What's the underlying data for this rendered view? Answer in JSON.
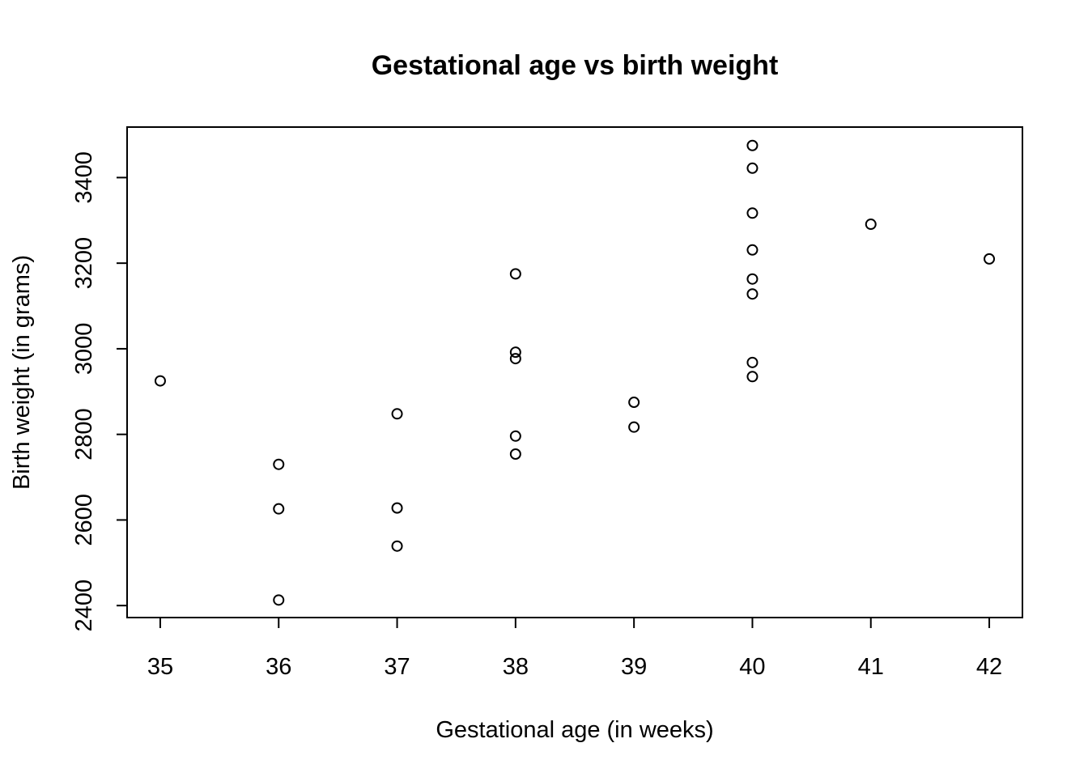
{
  "chart_data": {
    "type": "scatter",
    "title": "Gestational age vs birth weight",
    "xlabel": "Gestational age (in weeks)",
    "ylabel": "Birth weight (in grams)",
    "xlim": [
      34.72,
      42.28
    ],
    "ylim": [
      2372,
      3518
    ],
    "xticks": [
      35,
      36,
      37,
      38,
      39,
      40,
      41,
      42
    ],
    "yticks": [
      2400,
      2600,
      2800,
      3000,
      3200,
      3400
    ],
    "grid": false,
    "legend": "none",
    "points": [
      {
        "x": 35,
        "y": 2925
      },
      {
        "x": 36,
        "y": 2730
      },
      {
        "x": 36,
        "y": 2626
      },
      {
        "x": 36,
        "y": 2413
      },
      {
        "x": 37,
        "y": 2848
      },
      {
        "x": 37,
        "y": 2628
      },
      {
        "x": 37,
        "y": 2539
      },
      {
        "x": 38,
        "y": 3175
      },
      {
        "x": 38,
        "y": 2992
      },
      {
        "x": 38,
        "y": 2977
      },
      {
        "x": 38,
        "y": 2796
      },
      {
        "x": 38,
        "y": 2754
      },
      {
        "x": 39,
        "y": 2875
      },
      {
        "x": 39,
        "y": 2817
      },
      {
        "x": 40,
        "y": 3475
      },
      {
        "x": 40,
        "y": 3422
      },
      {
        "x": 40,
        "y": 3317
      },
      {
        "x": 40,
        "y": 3231
      },
      {
        "x": 40,
        "y": 3163
      },
      {
        "x": 40,
        "y": 3128
      },
      {
        "x": 40,
        "y": 2968
      },
      {
        "x": 40,
        "y": 2935
      },
      {
        "x": 41,
        "y": 3291
      },
      {
        "x": 42,
        "y": 3210
      }
    ]
  }
}
